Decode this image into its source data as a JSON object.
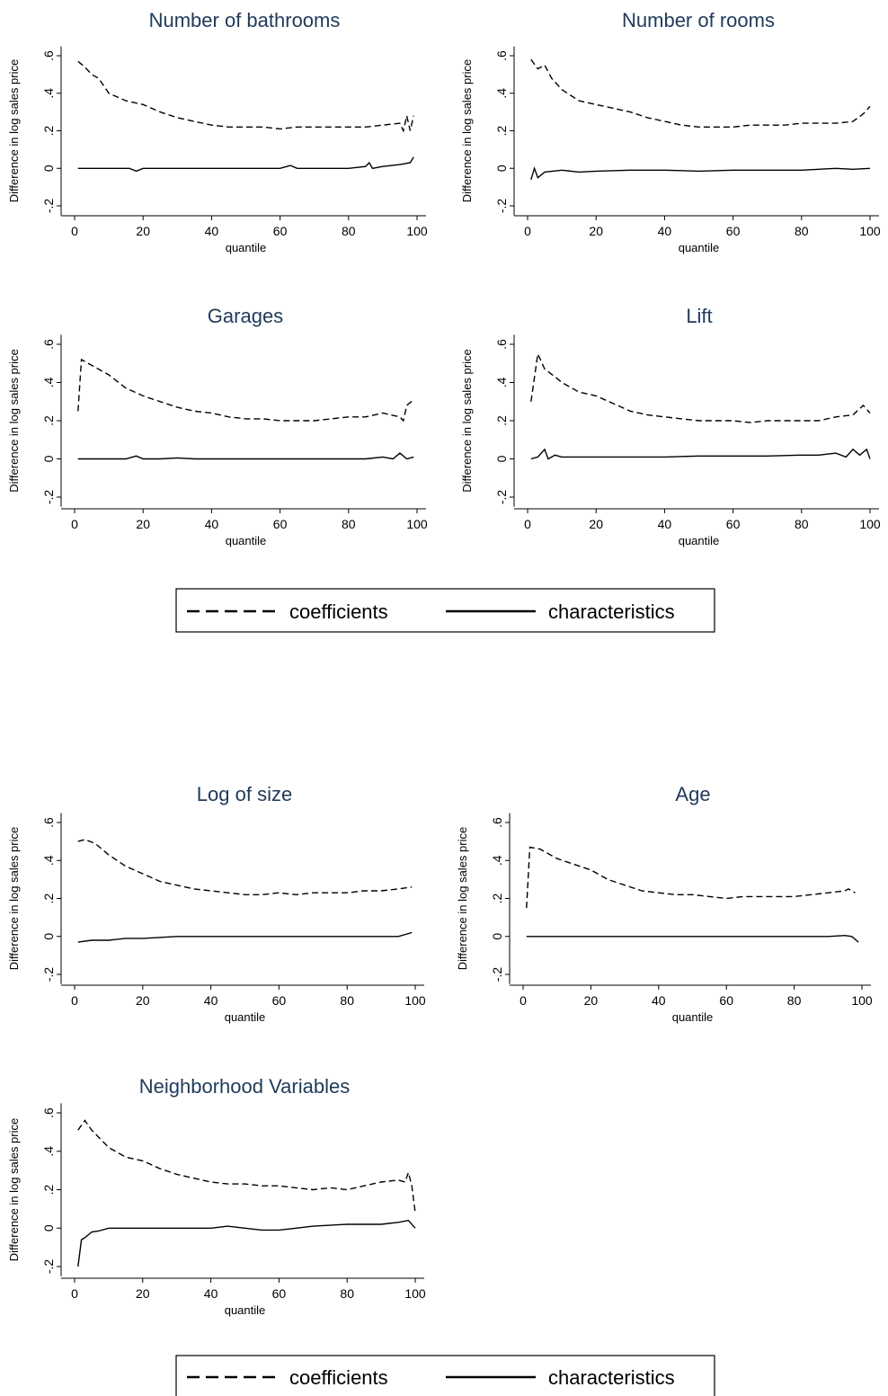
{
  "chart_data": [
    {
      "type": "line",
      "title": "Number of bathrooms",
      "xlabel": "quantile",
      "ylabel": "Difference in log sales price",
      "xlim": [
        0,
        100
      ],
      "ylim": [
        -0.25,
        0.65
      ],
      "xticks": [
        "0",
        "20",
        "40",
        "60",
        "80",
        "100"
      ],
      "yticks": [
        "-.2",
        "0",
        ".2",
        ".4",
        ".6"
      ],
      "series": [
        {
          "name": "coefficients",
          "x": [
            1,
            3,
            5,
            7,
            10,
            15,
            20,
            25,
            30,
            35,
            40,
            45,
            50,
            55,
            60,
            65,
            70,
            75,
            80,
            85,
            90,
            95,
            96,
            97,
            98,
            99
          ],
          "y": [
            0.57,
            0.54,
            0.5,
            0.48,
            0.4,
            0.36,
            0.34,
            0.3,
            0.27,
            0.25,
            0.23,
            0.22,
            0.22,
            0.22,
            0.21,
            0.22,
            0.22,
            0.22,
            0.22,
            0.22,
            0.23,
            0.24,
            0.2,
            0.28,
            0.2,
            0.28
          ]
        },
        {
          "name": "characteristics",
          "x": [
            1,
            10,
            16,
            18,
            20,
            25,
            30,
            40,
            50,
            60,
            62,
            63,
            65,
            70,
            80,
            85,
            86,
            87,
            90,
            95,
            98,
            99
          ],
          "y": [
            0,
            0,
            0,
            -0.015,
            0,
            0,
            0,
            0,
            0,
            0,
            0.01,
            0.015,
            0,
            0,
            0,
            0.01,
            0.03,
            0,
            0.01,
            0.02,
            0.03,
            0.06
          ]
        }
      ]
    },
    {
      "type": "line",
      "title": "Number of rooms",
      "xlabel": "quantile",
      "ylabel": "Difference in log sales price",
      "xlim": [
        0,
        100
      ],
      "ylim": [
        -0.25,
        0.65
      ],
      "xticks": [
        "0",
        "20",
        "40",
        "60",
        "80",
        "100"
      ],
      "yticks": [
        "-.2",
        "0",
        ".2",
        ".4",
        ".6"
      ],
      "series": [
        {
          "name": "coefficients",
          "x": [
            1,
            3,
            5,
            7,
            10,
            15,
            20,
            25,
            30,
            35,
            40,
            45,
            50,
            55,
            60,
            65,
            70,
            75,
            80,
            85,
            90,
            95,
            98,
            100
          ],
          "y": [
            0.58,
            0.53,
            0.55,
            0.48,
            0.42,
            0.36,
            0.34,
            0.32,
            0.3,
            0.27,
            0.25,
            0.23,
            0.22,
            0.22,
            0.22,
            0.23,
            0.23,
            0.23,
            0.24,
            0.24,
            0.24,
            0.25,
            0.29,
            0.33
          ]
        },
        {
          "name": "characteristics",
          "x": [
            1,
            2,
            3,
            5,
            10,
            15,
            20,
            30,
            40,
            50,
            60,
            70,
            80,
            90,
            95,
            100
          ],
          "y": [
            -0.06,
            0.0,
            -0.05,
            -0.02,
            -0.01,
            -0.02,
            -0.015,
            -0.01,
            -0.01,
            -0.015,
            -0.01,
            -0.01,
            -0.01,
            0.0,
            -0.005,
            0.0
          ]
        }
      ]
    },
    {
      "type": "line",
      "title": "Garages",
      "xlabel": "quantile",
      "ylabel": "Difference in log sales price",
      "xlim": [
        0,
        100
      ],
      "ylim": [
        -0.25,
        0.65
      ],
      "xticks": [
        "0",
        "20",
        "40",
        "60",
        "80",
        "100"
      ],
      "yticks": [
        "-.2",
        "0",
        ".2",
        ".4",
        ".6"
      ],
      "series": [
        {
          "name": "coefficients",
          "x": [
            1,
            2,
            5,
            10,
            15,
            20,
            25,
            30,
            35,
            40,
            45,
            50,
            55,
            60,
            65,
            70,
            75,
            80,
            85,
            90,
            95,
            96,
            97,
            99
          ],
          "y": [
            0.25,
            0.52,
            0.49,
            0.44,
            0.37,
            0.33,
            0.3,
            0.27,
            0.25,
            0.24,
            0.22,
            0.21,
            0.21,
            0.2,
            0.2,
            0.2,
            0.21,
            0.22,
            0.22,
            0.24,
            0.22,
            0.2,
            0.28,
            0.31
          ]
        },
        {
          "name": "characteristics",
          "x": [
            1,
            10,
            15,
            18,
            20,
            25,
            30,
            35,
            40,
            50,
            60,
            70,
            80,
            85,
            90,
            93,
            95,
            97,
            99
          ],
          "y": [
            0,
            0,
            0,
            0.015,
            0,
            0,
            0.005,
            0,
            0,
            0,
            0,
            0,
            0,
            0,
            0.01,
            0,
            0.03,
            0,
            0.01
          ]
        }
      ]
    },
    {
      "type": "line",
      "title": "Lift",
      "xlabel": "quantile",
      "ylabel": "Difference in log sales price",
      "xlim": [
        0,
        100
      ],
      "ylim": [
        -0.25,
        0.65
      ],
      "xticks": [
        "0",
        "20",
        "40",
        "60",
        "80",
        "100"
      ],
      "yticks": [
        "-.2",
        "0",
        ".2",
        ".4",
        ".6"
      ],
      "series": [
        {
          "name": "coefficients",
          "x": [
            1,
            3,
            5,
            8,
            10,
            15,
            20,
            25,
            30,
            35,
            40,
            45,
            50,
            55,
            60,
            65,
            70,
            75,
            80,
            85,
            90,
            95,
            98,
            100
          ],
          "y": [
            0.3,
            0.55,
            0.47,
            0.43,
            0.4,
            0.35,
            0.33,
            0.29,
            0.25,
            0.23,
            0.22,
            0.21,
            0.2,
            0.2,
            0.2,
            0.19,
            0.2,
            0.2,
            0.2,
            0.2,
            0.22,
            0.23,
            0.28,
            0.24
          ]
        },
        {
          "name": "characteristics",
          "x": [
            1,
            3,
            5,
            6,
            8,
            10,
            20,
            30,
            40,
            50,
            60,
            70,
            80,
            85,
            90,
            93,
            95,
            97,
            99,
            100
          ],
          "y": [
            0,
            0.01,
            0.05,
            0,
            0.02,
            0.01,
            0.01,
            0.01,
            0.01,
            0.015,
            0.015,
            0.015,
            0.02,
            0.02,
            0.03,
            0.01,
            0.05,
            0.02,
            0.05,
            0.0
          ]
        }
      ]
    },
    {
      "type": "line",
      "title": "Log of size",
      "xlabel": "quantile",
      "ylabel": "Difference in log sales price",
      "xlim": [
        0,
        100
      ],
      "ylim": [
        -0.25,
        0.65
      ],
      "xticks": [
        "0",
        "20",
        "40",
        "60",
        "80",
        "100"
      ],
      "yticks": [
        "-.2",
        "0",
        ".2",
        ".4",
        ".6"
      ],
      "series": [
        {
          "name": "coefficients",
          "x": [
            1,
            3,
            6,
            10,
            15,
            20,
            25,
            30,
            35,
            40,
            45,
            50,
            55,
            60,
            65,
            70,
            75,
            80,
            85,
            90,
            95,
            99
          ],
          "y": [
            0.5,
            0.51,
            0.49,
            0.43,
            0.37,
            0.33,
            0.29,
            0.27,
            0.25,
            0.24,
            0.23,
            0.22,
            0.22,
            0.23,
            0.22,
            0.23,
            0.23,
            0.23,
            0.24,
            0.24,
            0.25,
            0.26
          ]
        },
        {
          "name": "characteristics",
          "x": [
            1,
            5,
            10,
            15,
            20,
            30,
            40,
            50,
            60,
            70,
            80,
            90,
            95,
            99
          ],
          "y": [
            -0.03,
            -0.02,
            -0.02,
            -0.01,
            -0.01,
            0,
            0,
            0,
            0,
            0,
            0,
            0,
            0,
            0.02
          ]
        }
      ]
    },
    {
      "type": "line",
      "title": "Age",
      "xlabel": "quantile",
      "ylabel": "Difference in log sales price",
      "xlim": [
        0,
        100
      ],
      "ylim": [
        -0.25,
        0.65
      ],
      "xticks": [
        "0",
        "20",
        "40",
        "60",
        "80",
        "100"
      ],
      "yticks": [
        "-.2",
        "0",
        ".2",
        ".4",
        ".6"
      ],
      "series": [
        {
          "name": "coefficients",
          "x": [
            1,
            2,
            5,
            10,
            15,
            20,
            25,
            30,
            35,
            40,
            45,
            50,
            55,
            60,
            65,
            70,
            75,
            80,
            85,
            90,
            95,
            96,
            98
          ],
          "y": [
            0.15,
            0.47,
            0.46,
            0.41,
            0.38,
            0.35,
            0.3,
            0.27,
            0.24,
            0.23,
            0.22,
            0.22,
            0.21,
            0.2,
            0.21,
            0.21,
            0.21,
            0.21,
            0.22,
            0.23,
            0.24,
            0.25,
            0.23
          ]
        },
        {
          "name": "characteristics",
          "x": [
            1,
            10,
            20,
            30,
            40,
            50,
            60,
            70,
            80,
            90,
            95,
            97,
            99
          ],
          "y": [
            0,
            0,
            0,
            0,
            0,
            0,
            0,
            0,
            0,
            0,
            0.005,
            0,
            -0.03
          ]
        }
      ]
    },
    {
      "type": "line",
      "title": "Neighborhood Variables",
      "xlabel": "quantile",
      "ylabel": "Difference in log sales price",
      "xlim": [
        0,
        100
      ],
      "ylim": [
        -0.25,
        0.65
      ],
      "xticks": [
        "0",
        "20",
        "40",
        "60",
        "80",
        "100"
      ],
      "yticks": [
        "-.2",
        "0",
        ".2",
        ".4",
        ".6"
      ],
      "series": [
        {
          "name": "coefficients",
          "x": [
            1,
            3,
            5,
            10,
            15,
            20,
            25,
            30,
            35,
            40,
            45,
            50,
            55,
            60,
            65,
            70,
            75,
            80,
            85,
            90,
            95,
            97,
            98,
            99,
            100
          ],
          "y": [
            0.51,
            0.56,
            0.51,
            0.42,
            0.37,
            0.35,
            0.31,
            0.28,
            0.26,
            0.24,
            0.23,
            0.23,
            0.22,
            0.22,
            0.21,
            0.2,
            0.21,
            0.2,
            0.22,
            0.24,
            0.25,
            0.24,
            0.29,
            0.22,
            0.08
          ]
        },
        {
          "name": "characteristics",
          "x": [
            1,
            2,
            3,
            5,
            7,
            10,
            15,
            20,
            30,
            40,
            45,
            50,
            55,
            60,
            65,
            70,
            80,
            85,
            90,
            95,
            98,
            100
          ],
          "y": [
            -0.2,
            -0.06,
            -0.05,
            -0.02,
            -0.015,
            0,
            0,
            0,
            0,
            0,
            0.01,
            0,
            -0.01,
            -0.01,
            0.0,
            0.01,
            0.02,
            0.02,
            0.02,
            0.03,
            0.04,
            0.0
          ]
        }
      ]
    }
  ],
  "legend": {
    "coefficients": "coefficients",
    "characteristics": "characteristics"
  }
}
